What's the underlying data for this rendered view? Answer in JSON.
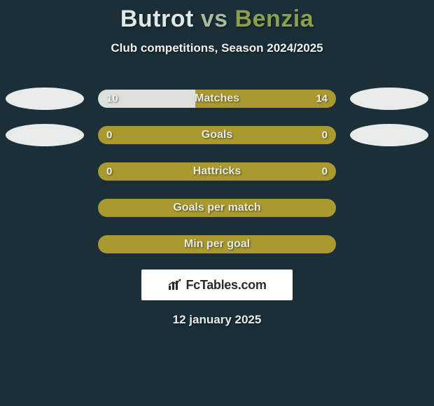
{
  "header": {
    "player1": "Butrot",
    "vs": "vs",
    "player2": "Benzia",
    "subtitle": "Club competitions, Season 2024/2025"
  },
  "colors": {
    "background": "#1a2f38",
    "player1_bar": "#dbe0da",
    "player2_bar": "#a9992f",
    "neutral_bar": "#a9992f",
    "oval": "#e8ebe9",
    "attribution_bg": "#ffffff",
    "attribution_text": "#2a2a2a"
  },
  "stats": [
    {
      "label": "Matches",
      "left_value": "10",
      "right_value": "14",
      "left_pct": 41,
      "show_ovals": true
    },
    {
      "label": "Goals",
      "left_value": "0",
      "right_value": "0",
      "left_pct": 0,
      "show_ovals": true
    },
    {
      "label": "Hattricks",
      "left_value": "0",
      "right_value": "0",
      "left_pct": 0,
      "show_ovals": false
    },
    {
      "label": "Goals per match",
      "left_value": "",
      "right_value": "",
      "left_pct": 0,
      "show_ovals": false
    },
    {
      "label": "Min per goal",
      "left_value": "",
      "right_value": "",
      "left_pct": 0,
      "show_ovals": false
    }
  ],
  "attribution": {
    "text": "FcTables.com"
  },
  "footer": {
    "date": "12 january 2025"
  }
}
